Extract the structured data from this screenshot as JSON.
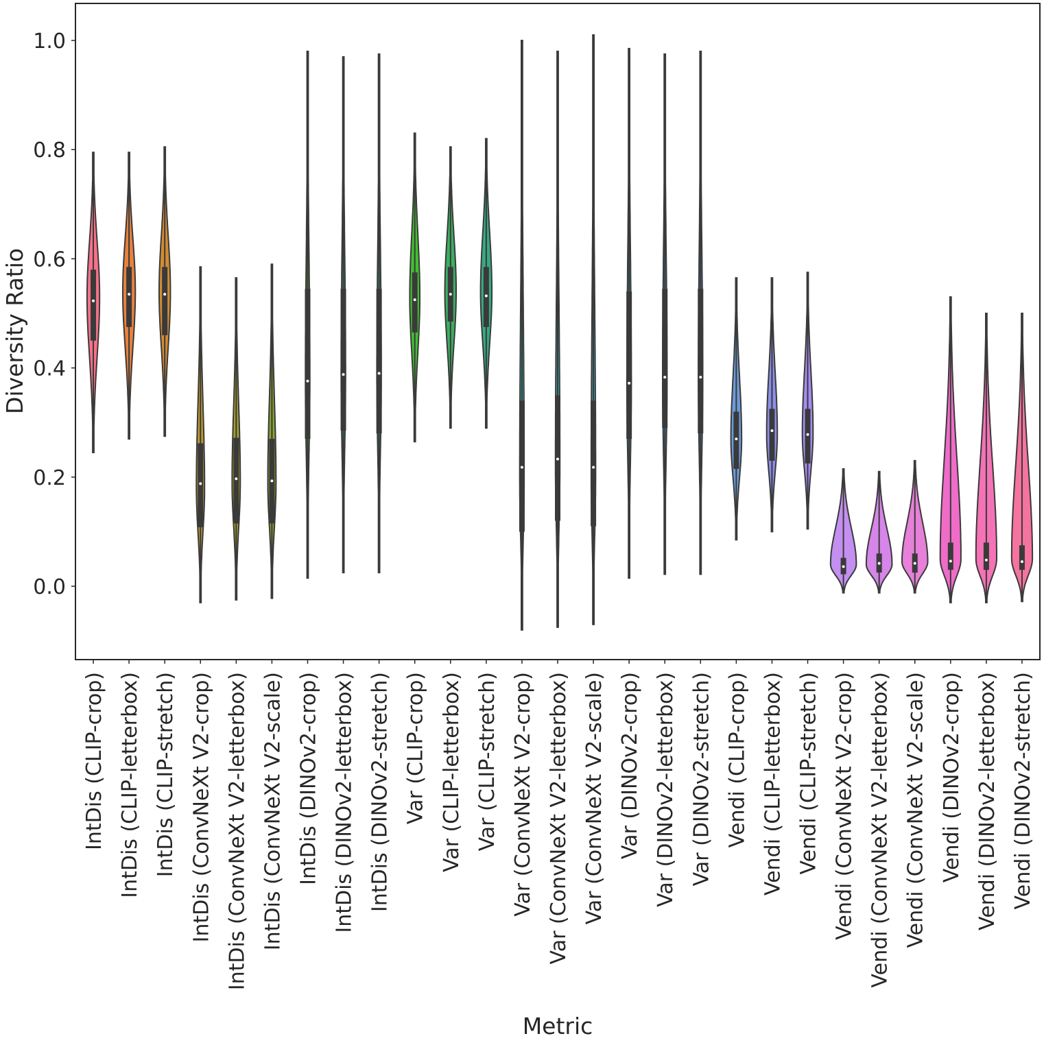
{
  "chart_data": {
    "type": "violin",
    "xlabel": "Metric",
    "ylabel": "Diversity Ratio",
    "ylim": [
      -0.135,
      1.07
    ],
    "yticks": [
      0.0,
      0.2,
      0.4,
      0.6,
      0.8,
      1.0
    ],
    "ytick_labels": [
      "0.0",
      "0.2",
      "0.4",
      "0.6",
      "0.8",
      "1.0"
    ],
    "grid": false,
    "legend": "none",
    "categories": [
      "IntDis (CLIP-crop)",
      "IntDis (CLIP-letterbox)",
      "IntDis (CLIP-stretch)",
      "IntDis (ConvNeXt V2-crop)",
      "IntDis (ConvNeXt V2-letterbox)",
      "IntDis (ConvNeXt V2-scale)",
      "IntDis (DINOv2-crop)",
      "IntDis (DINOv2-letterbox)",
      "IntDis (DINOv2-stretch)",
      "Var (CLIP-crop)",
      "Var (CLIP-letterbox)",
      "Var (CLIP-stretch)",
      "Var (ConvNeXt V2-crop)",
      "Var (ConvNeXt V2-letterbox)",
      "Var (ConvNeXt V2-scale)",
      "Var (DINOv2-crop)",
      "Var (DINOv2-letterbox)",
      "Var (DINOv2-stretch)",
      "Vendi (CLIP-crop)",
      "Vendi (CLIP-letterbox)",
      "Vendi (CLIP-stretch)",
      "Vendi (ConvNeXt V2-crop)",
      "Vendi (ConvNeXt V2-letterbox)",
      "Vendi (ConvNeXt V2-scale)",
      "Vendi (DINOv2-crop)",
      "Vendi (DINOv2-letterbox)",
      "Vendi (DINOv2-stretch)"
    ],
    "violins": [
      {
        "min": 0.245,
        "max": 0.795,
        "q1": 0.45,
        "median": 0.523,
        "q3": 0.58,
        "peak": 0.53,
        "width": 0.4,
        "color": "#f77189"
      },
      {
        "min": 0.27,
        "max": 0.795,
        "q1": 0.475,
        "median": 0.535,
        "q3": 0.585,
        "peak": 0.54,
        "width": 0.4,
        "color": "#e7813c"
      },
      {
        "min": 0.275,
        "max": 0.805,
        "q1": 0.46,
        "median": 0.535,
        "q3": 0.585,
        "peak": 0.54,
        "width": 0.36,
        "color": "#d38c32"
      },
      {
        "min": -0.03,
        "max": 0.585,
        "q1": 0.108,
        "median": 0.188,
        "q3": 0.262,
        "peak": 0.18,
        "width": 0.26,
        "color": "#bb9832"
      },
      {
        "min": -0.025,
        "max": 0.565,
        "q1": 0.115,
        "median": 0.197,
        "q3": 0.272,
        "peak": 0.19,
        "width": 0.26,
        "color": "#a39e31"
      },
      {
        "min": -0.022,
        "max": 0.59,
        "q1": 0.115,
        "median": 0.193,
        "q3": 0.27,
        "peak": 0.19,
        "width": 0.26,
        "color": "#88a431"
      },
      {
        "min": 0.015,
        "max": 0.98,
        "q1": 0.27,
        "median": 0.376,
        "q3": 0.545,
        "peak": 0.38,
        "width": 0.14,
        "color": "#50b131"
      },
      {
        "min": 0.025,
        "max": 0.97,
        "q1": 0.285,
        "median": 0.388,
        "q3": 0.545,
        "peak": 0.39,
        "width": 0.14,
        "color": "#33b06c"
      },
      {
        "min": 0.025,
        "max": 0.975,
        "q1": 0.28,
        "median": 0.39,
        "q3": 0.545,
        "peak": 0.39,
        "width": 0.14,
        "color": "#35ad8b"
      },
      {
        "min": 0.265,
        "max": 0.83,
        "q1": 0.465,
        "median": 0.525,
        "q3": 0.575,
        "peak": 0.53,
        "width": 0.32,
        "color": "#40c030"
      },
      {
        "min": 0.29,
        "max": 0.805,
        "q1": 0.485,
        "median": 0.535,
        "q3": 0.585,
        "peak": 0.54,
        "width": 0.36,
        "color": "#3ab061"
      },
      {
        "min": 0.29,
        "max": 0.82,
        "q1": 0.475,
        "median": 0.532,
        "q3": 0.585,
        "peak": 0.54,
        "width": 0.36,
        "color": "#38a982"
      },
      {
        "min": -0.08,
        "max": 1.0,
        "q1": 0.1,
        "median": 0.218,
        "q3": 0.34,
        "peak": 0.2,
        "width": 0.14,
        "color": "#36ada4"
      },
      {
        "min": -0.075,
        "max": 0.98,
        "q1": 0.12,
        "median": 0.233,
        "q3": 0.35,
        "peak": 0.22,
        "width": 0.14,
        "color": "#38aaac"
      },
      {
        "min": -0.07,
        "max": 1.01,
        "q1": 0.11,
        "median": 0.218,
        "q3": 0.34,
        "peak": 0.2,
        "width": 0.14,
        "color": "#3aa4bb"
      },
      {
        "min": 0.015,
        "max": 0.985,
        "q1": 0.27,
        "median": 0.372,
        "q3": 0.54,
        "peak": 0.37,
        "width": 0.14,
        "color": "#3ea1c7"
      },
      {
        "min": 0.022,
        "max": 0.975,
        "q1": 0.29,
        "median": 0.383,
        "q3": 0.545,
        "peak": 0.38,
        "width": 0.14,
        "color": "#459ad3"
      },
      {
        "min": 0.022,
        "max": 0.98,
        "q1": 0.28,
        "median": 0.383,
        "q3": 0.545,
        "peak": 0.38,
        "width": 0.14,
        "color": "#4f93e0"
      },
      {
        "min": 0.085,
        "max": 0.565,
        "q1": 0.215,
        "median": 0.27,
        "q3": 0.32,
        "peak": 0.27,
        "width": 0.34,
        "color": "#6e9bd9"
      },
      {
        "min": 0.1,
        "max": 0.565,
        "q1": 0.23,
        "median": 0.285,
        "q3": 0.325,
        "peak": 0.28,
        "width": 0.34,
        "color": "#8c8fe8"
      },
      {
        "min": 0.105,
        "max": 0.575,
        "q1": 0.225,
        "median": 0.278,
        "q3": 0.325,
        "peak": 0.28,
        "width": 0.34,
        "color": "#a58cf0"
      },
      {
        "min": -0.012,
        "max": 0.215,
        "q1": 0.022,
        "median": 0.036,
        "q3": 0.052,
        "peak": 0.04,
        "width": 0.82,
        "color": "#c38ff0"
      },
      {
        "min": -0.012,
        "max": 0.21,
        "q1": 0.025,
        "median": 0.042,
        "q3": 0.06,
        "peak": 0.04,
        "width": 0.82,
        "color": "#d685e8"
      },
      {
        "min": -0.012,
        "max": 0.23,
        "q1": 0.025,
        "median": 0.042,
        "q3": 0.06,
        "peak": 0.045,
        "width": 0.82,
        "color": "#e680d8"
      },
      {
        "min": -0.03,
        "max": 0.53,
        "q1": 0.03,
        "median": 0.046,
        "q3": 0.08,
        "peak": 0.05,
        "width": 0.66,
        "color": "#f06cc9"
      },
      {
        "min": -0.03,
        "max": 0.5,
        "q1": 0.03,
        "median": 0.048,
        "q3": 0.08,
        "peak": 0.05,
        "width": 0.66,
        "color": "#f472b6"
      },
      {
        "min": -0.028,
        "max": 0.5,
        "q1": 0.03,
        "median": 0.045,
        "q3": 0.075,
        "peak": 0.05,
        "width": 0.66,
        "color": "#f5739f"
      }
    ]
  }
}
